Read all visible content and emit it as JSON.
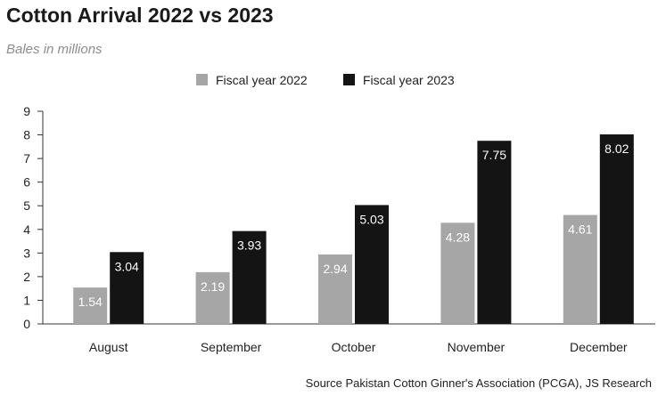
{
  "title": "Cotton Arrival 2022 vs 2023",
  "subtitle": "Bales in millions",
  "source": "Source Pakistan Cotton Ginner's Association (PCGA), JS Research",
  "colors": {
    "fy2022": "#a6a6a6",
    "fy2023": "#141414",
    "axis": "#333333"
  },
  "chart_data": {
    "type": "bar",
    "categories": [
      "August",
      "September",
      "October",
      "November",
      "December"
    ],
    "series": [
      {
        "name": "Fiscal year 2022",
        "values": [
          1.54,
          2.19,
          2.94,
          4.28,
          4.61
        ]
      },
      {
        "name": "Fiscal year 2023",
        "values": [
          3.04,
          3.93,
          5.03,
          7.75,
          8.02
        ]
      }
    ],
    "ylim": [
      0,
      9
    ],
    "yticks": [
      "0",
      "1",
      "2",
      "3",
      "4",
      "5",
      "6",
      "7",
      "8",
      "9"
    ],
    "grid": false,
    "legend_position": "top-center"
  }
}
